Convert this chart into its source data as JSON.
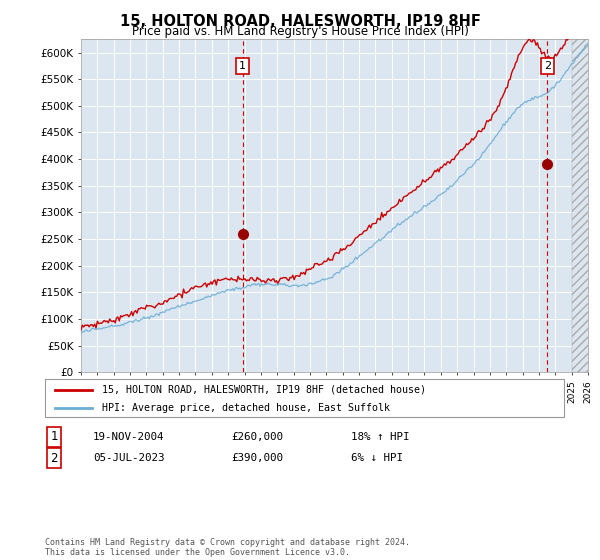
{
  "title": "15, HOLTON ROAD, HALESWORTH, IP19 8HF",
  "subtitle": "Price paid vs. HM Land Registry's House Price Index (HPI)",
  "ylim": [
    0,
    620000
  ],
  "xlim_start": 1995,
  "xlim_end": 2026,
  "plot_bg": "#dce6f1",
  "grid_color": "#ffffff",
  "line1_color": "#cc0000",
  "line2_color": "#6baed6",
  "marker1_date": 2004.88,
  "marker1_price": 260000,
  "marker2_date": 2023.51,
  "marker2_price": 390000,
  "legend1": "15, HOLTON ROAD, HALESWORTH, IP19 8HF (detached house)",
  "legend2": "HPI: Average price, detached house, East Suffolk",
  "annotation1_date": "19-NOV-2004",
  "annotation1_price": "£260,000",
  "annotation1_hpi": "18% ↑ HPI",
  "annotation2_date": "05-JUL-2023",
  "annotation2_price": "£390,000",
  "annotation2_hpi": "6% ↓ HPI",
  "footnote": "Contains HM Land Registry data © Crown copyright and database right 2024.\nThis data is licensed under the Open Government Licence v3.0."
}
